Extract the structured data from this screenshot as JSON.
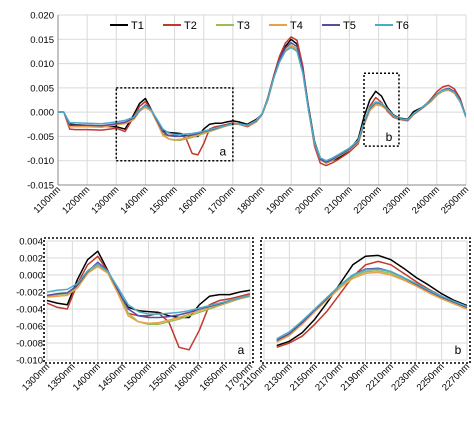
{
  "chart_data": [
    {
      "type": "line",
      "title": "",
      "xlabel": "",
      "ylabel": "",
      "xlim": [
        1100,
        2500
      ],
      "ylim": [
        -0.015,
        0.02
      ],
      "x_ticks": [
        "1100nm",
        "1200nm",
        "1300nm",
        "1400nm",
        "1500nm",
        "1600nm",
        "1700nm",
        "1800nm",
        "1900nm",
        "2000nm",
        "2100nm",
        "2200nm",
        "2300nm",
        "2400nm",
        "2500nm"
      ],
      "y_ticks": [
        "0.020",
        "0.015",
        "0.010",
        "0.005",
        "0.000",
        "-0.005",
        "-0.010",
        "-0.015"
      ],
      "grid": "on",
      "legend_position": "top",
      "legend": [
        "T1",
        "T2",
        "T3",
        "T4",
        "T5",
        "T6"
      ],
      "colors": [
        "#000000",
        "#c0392b",
        "#9bbb59",
        "#e8a04a",
        "#5b4aa3",
        "#4bacc6"
      ],
      "zoom_boxes": [
        {
          "label": "a",
          "x_range": [
            1300,
            1700
          ],
          "y_range": [
            -0.01,
            0.005
          ]
        },
        {
          "label": "b",
          "x_range": [
            2150,
            2270
          ],
          "y_range": [
            -0.007,
            0.008
          ]
        }
      ],
      "x": [
        1100,
        1120,
        1140,
        1160,
        1200,
        1250,
        1300,
        1330,
        1360,
        1380,
        1400,
        1420,
        1440,
        1460,
        1480,
        1500,
        1520,
        1540,
        1560,
        1580,
        1600,
        1620,
        1640,
        1660,
        1680,
        1700,
        1720,
        1750,
        1780,
        1800,
        1820,
        1840,
        1860,
        1880,
        1900,
        1920,
        1940,
        1960,
        1980,
        2000,
        2020,
        2040,
        2060,
        2080,
        2100,
        2130,
        2150,
        2170,
        2190,
        2210,
        2230,
        2250,
        2270,
        2300,
        2320,
        2350,
        2380,
        2400,
        2420,
        2440,
        2460,
        2480,
        2500
      ],
      "series": [
        {
          "name": "T1",
          "values": [
            0,
            0,
            -0.0025,
            -0.0026,
            -0.0027,
            -0.0029,
            -0.003,
            -0.0035,
            -0.0005,
            0.0018,
            0.0028,
            0.0005,
            -0.002,
            -0.0038,
            -0.0042,
            -0.0043,
            -0.0044,
            -0.0048,
            -0.005,
            -0.005,
            -0.0035,
            -0.0025,
            -0.0023,
            -0.0023,
            -0.002,
            -0.0018,
            -0.002,
            -0.0025,
            -0.0015,
            -0.0005,
            0.0025,
            0.007,
            0.011,
            0.0135,
            0.015,
            0.014,
            0.009,
            0.001,
            -0.006,
            -0.0095,
            -0.0105,
            -0.01,
            -0.0095,
            -0.0088,
            -0.0078,
            -0.0055,
            -0.001,
            0.0025,
            0.0043,
            0.0033,
            0.001,
            -0.0005,
            -0.0012,
            -0.0015,
            0.0001,
            0.001,
            0.0025,
            0.0037,
            0.0043,
            0.0047,
            0.0043,
            0.0025,
            -0.001
          ]
        },
        {
          "name": "T2",
          "values": [
            0,
            0,
            -0.0035,
            -0.0036,
            -0.0036,
            -0.0037,
            -0.0033,
            -0.004,
            -0.001,
            0.0012,
            0.0022,
            0.0004,
            -0.002,
            -0.0045,
            -0.0048,
            -0.0048,
            -0.0045,
            -0.0055,
            -0.0085,
            -0.0088,
            -0.0065,
            -0.0035,
            -0.003,
            -0.0028,
            -0.0025,
            -0.0022,
            -0.0025,
            -0.003,
            -0.002,
            -0.0005,
            0.003,
            0.0075,
            0.0115,
            0.0142,
            0.0155,
            0.0148,
            0.0095,
            0.0005,
            -0.007,
            -0.0105,
            -0.011,
            -0.0105,
            -0.0098,
            -0.009,
            -0.0082,
            -0.0065,
            -0.0025,
            0.0012,
            0.003,
            0.002,
            0.0002,
            -0.001,
            -0.0015,
            -0.0018,
            -0.0005,
            0.0008,
            0.0027,
            0.0042,
            0.0052,
            0.0055,
            0.0048,
            0.0028,
            -0.001
          ]
        },
        {
          "name": "T3",
          "values": [
            0,
            0,
            -0.0028,
            -0.0028,
            -0.0029,
            -0.003,
            -0.0025,
            -0.0022,
            -0.0015,
            0.0002,
            0.0012,
            0.0003,
            -0.002,
            -0.0045,
            -0.0055,
            -0.0058,
            -0.0058,
            -0.0055,
            -0.0052,
            -0.0048,
            -0.0044,
            -0.004,
            -0.0036,
            -0.0032,
            -0.0028,
            -0.0025,
            -0.0025,
            -0.0028,
            -0.002,
            -0.0005,
            0.0025,
            0.007,
            0.0105,
            0.0128,
            0.0138,
            0.013,
            0.0085,
            0.0005,
            -0.0065,
            -0.0098,
            -0.0105,
            -0.01,
            -0.0092,
            -0.0085,
            -0.0078,
            -0.0062,
            -0.0025,
            0.0005,
            0.0018,
            0.0015,
            0.0005,
            -0.0008,
            -0.0015,
            -0.0018,
            -0.0005,
            0.0008,
            0.0022,
            0.0035,
            0.0043,
            0.0046,
            0.004,
            0.0022,
            -0.001
          ]
        },
        {
          "name": "T4",
          "values": [
            0,
            0,
            -0.003,
            -0.003,
            -0.003,
            -0.0031,
            -0.0026,
            -0.0024,
            -0.0015,
            0.0002,
            0.001,
            0.0002,
            -0.0022,
            -0.0048,
            -0.0055,
            -0.0057,
            -0.0056,
            -0.0053,
            -0.005,
            -0.0046,
            -0.0042,
            -0.0038,
            -0.0035,
            -0.0031,
            -0.0028,
            -0.0025,
            -0.0025,
            -0.0028,
            -0.002,
            -0.0005,
            0.0025,
            0.007,
            0.0105,
            0.0128,
            0.0136,
            0.0128,
            0.0083,
            0.0003,
            -0.0066,
            -0.0098,
            -0.0104,
            -0.0099,
            -0.0091,
            -0.0084,
            -0.0077,
            -0.0062,
            -0.0027,
            0.0003,
            0.0015,
            0.0013,
            0.0004,
            -0.0008,
            -0.0015,
            -0.0018,
            -0.0005,
            0.0008,
            0.0022,
            0.0035,
            0.0043,
            0.0045,
            0.0039,
            0.0021,
            -0.001
          ]
        },
        {
          "name": "T5",
          "values": [
            0,
            0,
            -0.0027,
            -0.0027,
            -0.0027,
            -0.0028,
            -0.0024,
            -0.0021,
            -0.0012,
            0.0004,
            0.0015,
            0.0005,
            -0.0018,
            -0.004,
            -0.0048,
            -0.005,
            -0.005,
            -0.0049,
            -0.0047,
            -0.0044,
            -0.004,
            -0.0037,
            -0.0034,
            -0.003,
            -0.0027,
            -0.0024,
            -0.0024,
            -0.0027,
            -0.0018,
            -0.0004,
            0.0028,
            0.0072,
            0.0108,
            0.0132,
            0.0143,
            0.0135,
            0.0088,
            0.0005,
            -0.0064,
            -0.0097,
            -0.0103,
            -0.0098,
            -0.009,
            -0.0083,
            -0.0076,
            -0.006,
            -0.0022,
            0.0008,
            0.002,
            0.0017,
            0.0006,
            -0.0007,
            -0.0014,
            -0.0017,
            -0.0004,
            0.0009,
            0.0024,
            0.0037,
            0.0046,
            0.0049,
            0.0043,
            0.0024,
            -0.001
          ]
        },
        {
          "name": "T6",
          "values": [
            0,
            0,
            -0.0022,
            -0.0022,
            -0.0023,
            -0.0024,
            -0.002,
            -0.0017,
            -0.001,
            0.0005,
            0.0013,
            0.0004,
            -0.0015,
            -0.0035,
            -0.0043,
            -0.0046,
            -0.0046,
            -0.0045,
            -0.0044,
            -0.0042,
            -0.0039,
            -0.0036,
            -0.0033,
            -0.003,
            -0.0027,
            -0.0024,
            -0.0024,
            -0.0027,
            -0.0017,
            -0.0003,
            0.0027,
            0.007,
            0.0103,
            0.0125,
            0.0133,
            0.0125,
            0.008,
            0.0003,
            -0.0062,
            -0.0094,
            -0.01,
            -0.0095,
            -0.0088,
            -0.0081,
            -0.0074,
            -0.0058,
            -0.002,
            0.001,
            0.0021,
            0.0018,
            0.0007,
            -0.0006,
            -0.0013,
            -0.0016,
            -0.0003,
            0.001,
            0.0024,
            0.0037,
            0.0045,
            0.0047,
            0.0041,
            0.0022,
            -0.001
          ]
        }
      ]
    },
    {
      "type": "line",
      "title": "",
      "panel_label": "a",
      "xlim": [
        1300,
        1700
      ],
      "ylim": [
        -0.01,
        0.004
      ],
      "x_ticks": [
        "1300nm",
        "1350nm",
        "1400nm",
        "1450nm",
        "1500nm",
        "1550nm",
        "1600nm",
        "1650nm",
        "1700nm"
      ],
      "y_ticks": [
        "0.004",
        "0.002",
        "0.000",
        "-0.002",
        "-0.004",
        "-0.006",
        "-0.008",
        "-0.010"
      ],
      "grid": "on",
      "x": [
        1300,
        1320,
        1340,
        1360,
        1380,
        1400,
        1420,
        1440,
        1460,
        1480,
        1500,
        1520,
        1540,
        1560,
        1580,
        1600,
        1620,
        1640,
        1660,
        1680,
        1700
      ],
      "series": [
        {
          "name": "T1",
          "values": [
            -0.003,
            -0.0033,
            -0.0035,
            -0.0005,
            0.0018,
            0.0028,
            0.0005,
            -0.002,
            -0.0038,
            -0.0042,
            -0.0043,
            -0.0044,
            -0.0048,
            -0.005,
            -0.005,
            -0.0035,
            -0.0025,
            -0.0023,
            -0.0023,
            -0.002,
            -0.0018
          ]
        },
        {
          "name": "T2",
          "values": [
            -0.0033,
            -0.0038,
            -0.004,
            -0.001,
            0.0012,
            0.0022,
            0.0004,
            -0.002,
            -0.0045,
            -0.0048,
            -0.0048,
            -0.0045,
            -0.0055,
            -0.0085,
            -0.0088,
            -0.0065,
            -0.0035,
            -0.003,
            -0.0028,
            -0.0025,
            -0.0022
          ]
        },
        {
          "name": "T3",
          "values": [
            -0.0025,
            -0.0023,
            -0.0022,
            -0.0015,
            0.0002,
            0.0012,
            0.0003,
            -0.002,
            -0.0045,
            -0.0055,
            -0.0058,
            -0.0058,
            -0.0055,
            -0.0052,
            -0.0048,
            -0.0044,
            -0.004,
            -0.0036,
            -0.0032,
            -0.0028,
            -0.0025
          ]
        },
        {
          "name": "T4",
          "values": [
            -0.0026,
            -0.0025,
            -0.0024,
            -0.0015,
            0.0002,
            0.001,
            0.0002,
            -0.0022,
            -0.0048,
            -0.0055,
            -0.0057,
            -0.0056,
            -0.0053,
            -0.005,
            -0.0046,
            -0.0042,
            -0.0038,
            -0.0035,
            -0.0031,
            -0.0028,
            -0.0025
          ]
        },
        {
          "name": "T5",
          "values": [
            -0.0024,
            -0.0022,
            -0.0021,
            -0.0012,
            0.0004,
            0.0015,
            0.0005,
            -0.0018,
            -0.004,
            -0.0048,
            -0.005,
            -0.005,
            -0.0049,
            -0.0047,
            -0.0044,
            -0.004,
            -0.0037,
            -0.0034,
            -0.003,
            -0.0027,
            -0.0024
          ]
        },
        {
          "name": "T6",
          "values": [
            -0.002,
            -0.0018,
            -0.0017,
            -0.001,
            0.0005,
            0.0013,
            0.0004,
            -0.0015,
            -0.0035,
            -0.0043,
            -0.0046,
            -0.0046,
            -0.0045,
            -0.0044,
            -0.0042,
            -0.0039,
            -0.0036,
            -0.0033,
            -0.003,
            -0.0027,
            -0.0024
          ]
        }
      ]
    },
    {
      "type": "line",
      "title": "",
      "panel_label": "b",
      "xlim": [
        2110,
        2270
      ],
      "ylim": [
        -0.01,
        0.004
      ],
      "x_ticks": [
        "2110nm",
        "2130nm",
        "2150nm",
        "2170nm",
        "2190nm",
        "2210nm",
        "2230nm",
        "2250nm",
        "2270nm"
      ],
      "grid": "on",
      "x": [
        2120,
        2130,
        2140,
        2150,
        2160,
        2170,
        2180,
        2190,
        2200,
        2210,
        2220,
        2230,
        2240,
        2250,
        2260,
        2270
      ],
      "series": [
        {
          "name": "T1",
          "values": [
            -0.0083,
            -0.0078,
            -0.0068,
            -0.0052,
            -0.0032,
            -0.001,
            0.0012,
            0.0022,
            0.0023,
            0.0018,
            0.0008,
            -0.0003,
            -0.0012,
            -0.0022,
            -0.003,
            -0.0036
          ]
        },
        {
          "name": "T2",
          "values": [
            -0.0085,
            -0.008,
            -0.0072,
            -0.0058,
            -0.0042,
            -0.0022,
            -0.0002,
            0.0012,
            0.0016,
            0.0012,
            0.0002,
            -0.0008,
            -0.0017,
            -0.0025,
            -0.0033,
            -0.0039
          ]
        },
        {
          "name": "T3",
          "values": [
            -0.0078,
            -0.007,
            -0.0057,
            -0.0042,
            -0.0028,
            -0.0013,
            -0.0002,
            0.0004,
            0.0005,
            0.0002,
            -0.0005,
            -0.0012,
            -0.002,
            -0.0027,
            -0.0033,
            -0.0039
          ]
        },
        {
          "name": "T4",
          "values": [
            -0.0079,
            -0.0071,
            -0.0058,
            -0.0043,
            -0.0029,
            -0.0015,
            -0.0004,
            0.0002,
            0.0003,
            0.0,
            -0.0006,
            -0.0013,
            -0.0021,
            -0.0028,
            -0.0034,
            -0.004
          ]
        },
        {
          "name": "T5",
          "values": [
            -0.0077,
            -0.0069,
            -0.0056,
            -0.0041,
            -0.0027,
            -0.0012,
            0.0,
            0.0007,
            0.0008,
            0.0004,
            -0.0003,
            -0.0011,
            -0.0019,
            -0.0026,
            -0.0032,
            -0.0038
          ]
        },
        {
          "name": "T6",
          "values": [
            -0.0075,
            -0.0067,
            -0.0054,
            -0.004,
            -0.0026,
            -0.0012,
            0.0,
            0.0006,
            0.0007,
            0.0004,
            -0.0003,
            -0.001,
            -0.0018,
            -0.0025,
            -0.0031,
            -0.0037
          ]
        }
      ]
    }
  ]
}
